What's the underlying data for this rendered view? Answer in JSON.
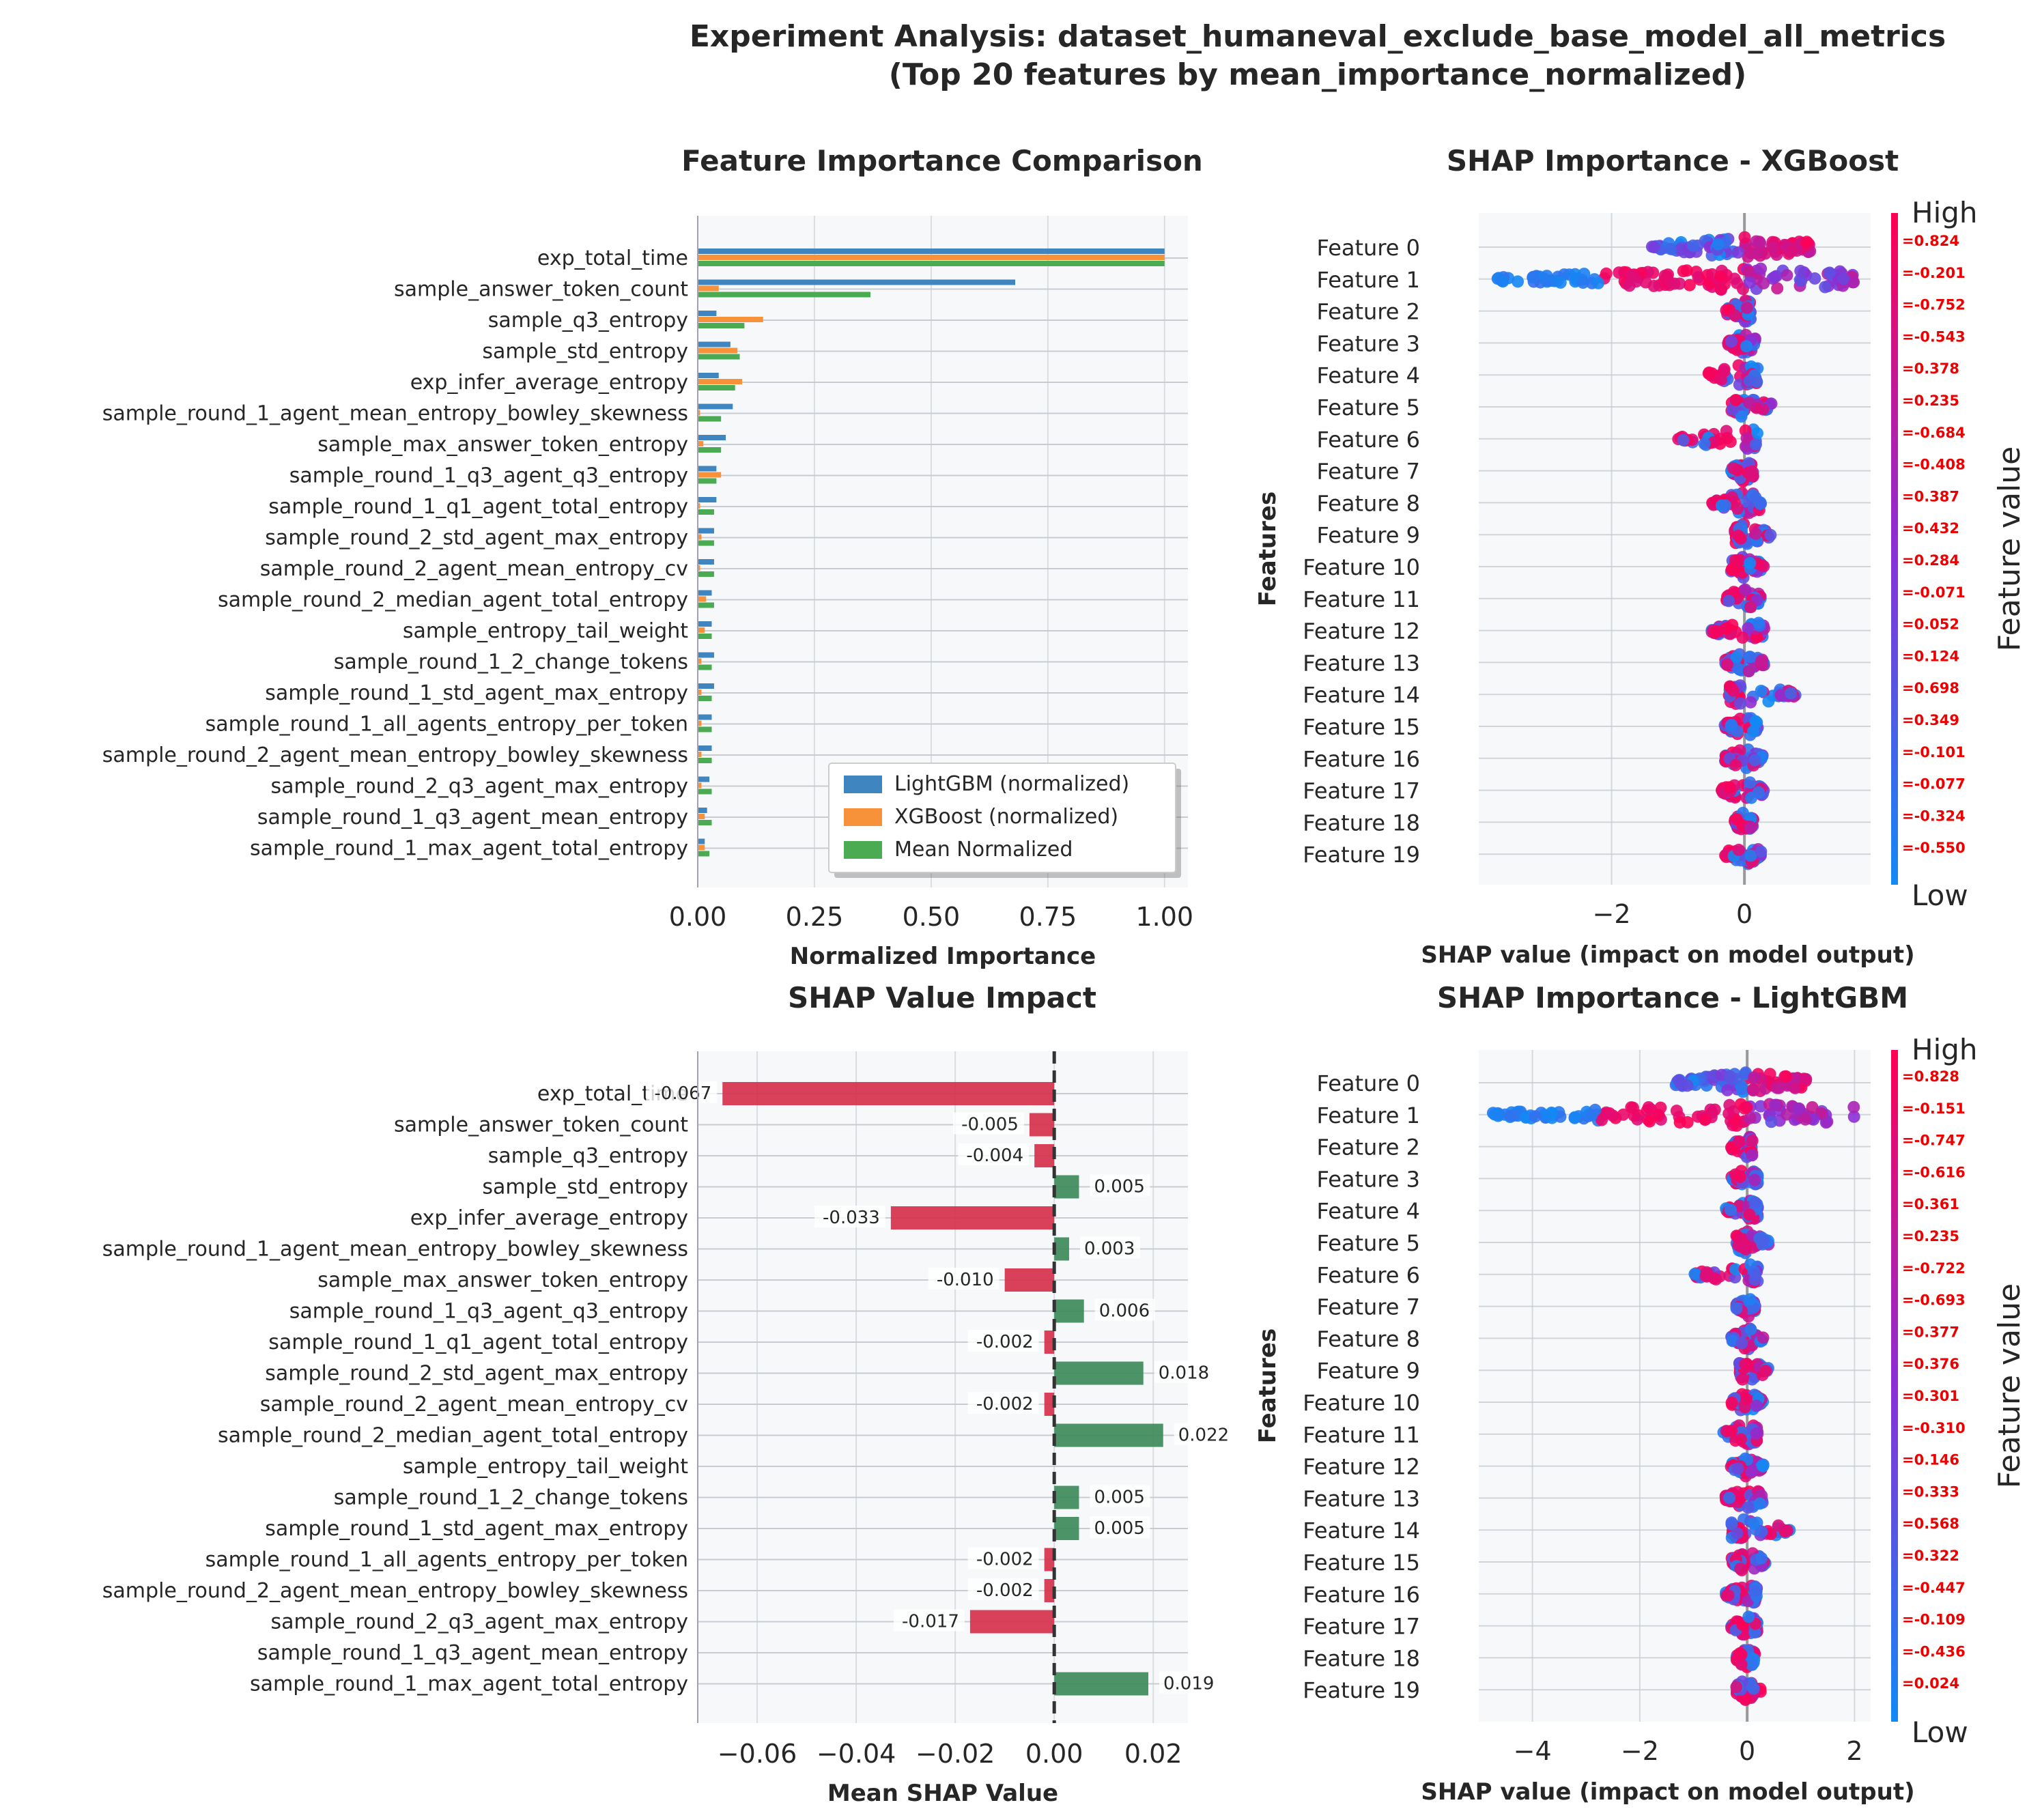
{
  "figure": {
    "title_line1": "Experiment Analysis: dataset_humaneval_exclude_base_model_all_metrics",
    "title_line2": "(Top 20 features by mean_importance_normalized)"
  },
  "colors": {
    "lightgbm": "#3f86c0",
    "xgboost": "#f7913a",
    "mean": "#4bab52",
    "negative": "#d6304b",
    "positive": "#3d8a5a",
    "panel_bg": "#f6f8fa",
    "shap_low": "#118af5",
    "shap_mid": "#8040d8",
    "shap_high": "#ff0053"
  },
  "chart_data": [
    {
      "type": "bar",
      "orientation": "horizontal",
      "title": "Feature Importance Comparison",
      "xlabel": "Normalized Importance",
      "ylabel": "",
      "xlim": [
        0,
        1.05
      ],
      "xticks": [
        "0.00",
        "0.25",
        "0.50",
        "0.75",
        "1.00"
      ],
      "legend_position": "lower-right",
      "categories": [
        "exp_total_time",
        "sample_answer_token_count",
        "sample_q3_entropy",
        "sample_std_entropy",
        "exp_infer_average_entropy",
        "sample_round_1_agent_mean_entropy_bowley_skewness",
        "sample_max_answer_token_entropy",
        "sample_round_1_q3_agent_q3_entropy",
        "sample_round_1_q1_agent_total_entropy",
        "sample_round_2_std_agent_max_entropy",
        "sample_round_2_agent_mean_entropy_cv",
        "sample_round_2_median_agent_total_entropy",
        "sample_entropy_tail_weight",
        "sample_round_1_2_change_tokens",
        "sample_round_1_std_agent_max_entropy",
        "sample_round_1_all_agents_entropy_per_token",
        "sample_round_2_agent_mean_entropy_bowley_skewness",
        "sample_round_2_q3_agent_max_entropy",
        "sample_round_1_q3_agent_mean_entropy",
        "sample_round_1_max_agent_total_entropy"
      ],
      "series": [
        {
          "name": "LightGBM (normalized)",
          "values": [
            1.0,
            0.68,
            0.04,
            0.07,
            0.045,
            0.075,
            0.06,
            0.04,
            0.04,
            0.035,
            0.035,
            0.03,
            0.03,
            0.035,
            0.035,
            0.03,
            0.03,
            0.025,
            0.02,
            0.015
          ]
        },
        {
          "name": "XGBoost (normalized)",
          "values": [
            1.0,
            0.045,
            0.14,
            0.085,
            0.095,
            0.005,
            0.012,
            0.05,
            0.005,
            0.008,
            0.005,
            0.018,
            0.015,
            0.008,
            0.008,
            0.008,
            0.008,
            0.008,
            0.015,
            0.015
          ]
        },
        {
          "name": "Mean Normalized",
          "values": [
            1.0,
            0.37,
            0.1,
            0.09,
            0.08,
            0.05,
            0.05,
            0.04,
            0.035,
            0.035,
            0.035,
            0.035,
            0.03,
            0.03,
            0.03,
            0.03,
            0.03,
            0.03,
            0.03,
            0.025
          ]
        }
      ]
    },
    {
      "type": "scatter",
      "subtype": "shap-beeswarm",
      "title": "SHAP Importance - XGBoost",
      "xlabel": "SHAP value (impact on model output)",
      "ylabel": "Features",
      "xlim": [
        -4.0,
        1.9
      ],
      "xticks": [
        -2,
        0
      ],
      "colorbar_label": "Feature value",
      "colorbar_high": "High",
      "colorbar_low": "Low",
      "features": [
        "Feature 0",
        "Feature 1",
        "Feature 2",
        "Feature 3",
        "Feature 4",
        "Feature 5",
        "Feature 6",
        "Feature 7",
        "Feature 8",
        "Feature 9",
        "Feature 10",
        "Feature 11",
        "Feature 12",
        "Feature 13",
        "Feature 14",
        "Feature 15",
        "Feature 16",
        "Feature 17",
        "Feature 18",
        "Feature 19"
      ],
      "feature_value_labels": [
        "=0.824",
        "=-0.201",
        "=-0.752",
        "=-0.543",
        "=0.378",
        "=0.235",
        "=-0.684",
        "=-0.408",
        "=0.387",
        "=0.432",
        "=0.284",
        "=-0.071",
        "=0.052",
        "=0.124",
        "=0.698",
        "=0.349",
        "=-0.101",
        "=-0.077",
        "=-0.324",
        "=-0.550"
      ],
      "shap_ranges": [
        [
          -1.4,
          1.0
        ],
        [
          -3.8,
          1.65
        ],
        [
          -0.3,
          0.1
        ],
        [
          -0.25,
          0.2
        ],
        [
          -0.55,
          0.2
        ],
        [
          -0.2,
          0.45
        ],
        [
          -1.0,
          0.2
        ],
        [
          -0.2,
          0.15
        ],
        [
          -0.5,
          0.25
        ],
        [
          -0.15,
          0.4
        ],
        [
          -0.2,
          0.3
        ],
        [
          -0.3,
          0.25
        ],
        [
          -0.5,
          0.3
        ],
        [
          -0.3,
          0.3
        ],
        [
          -0.25,
          0.8
        ],
        [
          -0.3,
          0.2
        ],
        [
          -0.3,
          0.3
        ],
        [
          -0.35,
          0.3
        ],
        [
          -0.15,
          0.15
        ],
        [
          -0.3,
          0.25
        ]
      ]
    },
    {
      "type": "bar",
      "orientation": "horizontal",
      "title": "SHAP Value Impact",
      "xlabel": "Mean SHAP Value",
      "ylabel": "",
      "xlim": [
        -0.072,
        0.027
      ],
      "xticks": [
        "−0.06",
        "−0.04",
        "−0.02",
        "0.00",
        "0.02"
      ],
      "categories": [
        "exp_total_time",
        "sample_answer_token_count",
        "sample_q3_entropy",
        "sample_std_entropy",
        "exp_infer_average_entropy",
        "sample_round_1_agent_mean_entropy_bowley_skewness",
        "sample_max_answer_token_entropy",
        "sample_round_1_q3_agent_q3_entropy",
        "sample_round_1_q1_agent_total_entropy",
        "sample_round_2_std_agent_max_entropy",
        "sample_round_2_agent_mean_entropy_cv",
        "sample_round_2_median_agent_total_entropy",
        "sample_entropy_tail_weight",
        "sample_round_1_2_change_tokens",
        "sample_round_1_std_agent_max_entropy",
        "sample_round_1_all_agents_entropy_per_token",
        "sample_round_2_agent_mean_entropy_bowley_skewness",
        "sample_round_2_q3_agent_max_entropy",
        "sample_round_1_q3_agent_mean_entropy",
        "sample_round_1_max_agent_total_entropy"
      ],
      "values": [
        -0.067,
        -0.005,
        -0.004,
        0.005,
        -0.033,
        0.003,
        -0.01,
        0.006,
        -0.002,
        0.018,
        -0.002,
        0.022,
        0.0,
        0.005,
        0.005,
        -0.002,
        -0.002,
        -0.017,
        0.0,
        0.019
      ],
      "labels": [
        "-0.067",
        "-0.005",
        "-0.004",
        "0.005",
        "-0.033",
        "0.003",
        "-0.010",
        "0.006",
        "-0.002",
        "0.018",
        "-0.002",
        "0.022",
        "",
        "0.005",
        "0.005",
        "-0.002",
        "-0.002",
        "-0.017",
        "",
        "0.019"
      ]
    },
    {
      "type": "scatter",
      "subtype": "shap-beeswarm",
      "title": "SHAP Importance - LightGBM",
      "xlabel": "SHAP value (impact on model output)",
      "ylabel": "Features",
      "xlim": [
        -5.0,
        2.3
      ],
      "xticks": [
        -4,
        -2,
        0,
        2
      ],
      "colorbar_label": "Feature value",
      "colorbar_high": "High",
      "colorbar_low": "Low",
      "features": [
        "Feature 0",
        "Feature 1",
        "Feature 2",
        "Feature 3",
        "Feature 4",
        "Feature 5",
        "Feature 6",
        "Feature 7",
        "Feature 8",
        "Feature 9",
        "Feature 10",
        "Feature 11",
        "Feature 12",
        "Feature 13",
        "Feature 14",
        "Feature 15",
        "Feature 16",
        "Feature 17",
        "Feature 18",
        "Feature 19"
      ],
      "feature_value_labels": [
        "=0.828",
        "=-0.151",
        "=-0.747",
        "=-0.616",
        "=0.361",
        "=0.235",
        "=-0.722",
        "=-0.693",
        "=0.377",
        "=0.376",
        "=0.301",
        "=-0.310",
        "=0.146",
        "=0.333",
        "=0.568",
        "=0.322",
        "=-0.447",
        "=-0.109",
        "=-0.436",
        "=0.024"
      ],
      "shap_ranges": [
        [
          -1.4,
          1.1
        ],
        [
          -4.8,
          2.0
        ],
        [
          -0.3,
          0.1
        ],
        [
          -0.3,
          0.2
        ],
        [
          -0.4,
          0.2
        ],
        [
          -0.2,
          0.4
        ],
        [
          -1.0,
          0.2
        ],
        [
          -0.2,
          0.15
        ],
        [
          -0.3,
          0.3
        ],
        [
          -0.15,
          0.4
        ],
        [
          -0.3,
          0.3
        ],
        [
          -0.5,
          0.2
        ],
        [
          -0.3,
          0.3
        ],
        [
          -0.4,
          0.3
        ],
        [
          -0.3,
          0.8
        ],
        [
          -0.3,
          0.35
        ],
        [
          -0.4,
          0.2
        ],
        [
          -0.3,
          0.2
        ],
        [
          -0.2,
          0.15
        ],
        [
          -0.2,
          0.25
        ]
      ]
    }
  ]
}
